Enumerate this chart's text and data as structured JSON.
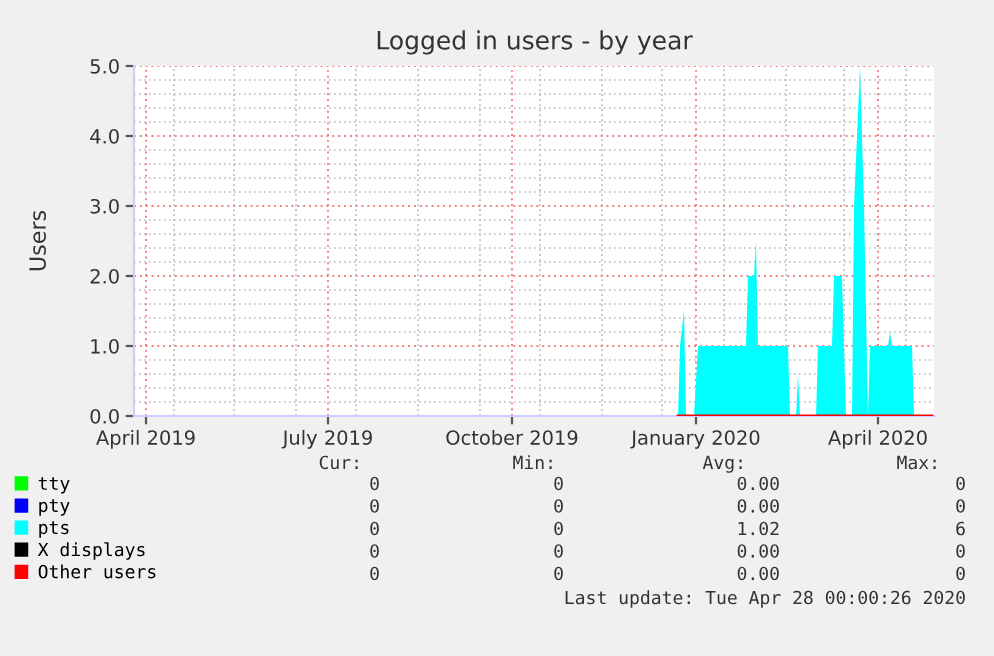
{
  "chart_data": {
    "type": "area",
    "title": "Logged in users - by year",
    "ylabel": "Users",
    "xlim": [
      "2019-03-26",
      "2020-04-29"
    ],
    "ylim": [
      0,
      5
    ],
    "xticks": [
      {
        "value": "2019-04-01",
        "label": "April 2019"
      },
      {
        "value": "2019-07-01",
        "label": "July 2019"
      },
      {
        "value": "2019-10-01",
        "label": "October 2019"
      },
      {
        "value": "2020-01-01",
        "label": "January 2020"
      },
      {
        "value": "2020-04-01",
        "label": "April 2020"
      }
    ],
    "yticks": [
      {
        "value": 0,
        "label": "0.0"
      },
      {
        "value": 1,
        "label": "1.0"
      },
      {
        "value": 2,
        "label": "2.0"
      },
      {
        "value": 3,
        "label": "3.0"
      },
      {
        "value": 4,
        "label": "4.0"
      },
      {
        "value": 5,
        "label": "5.0"
      }
    ],
    "grid": true,
    "legend": "bottom left",
    "series": [
      {
        "name": "tty",
        "color": "#00ff00",
        "type": "line"
      },
      {
        "name": "pty",
        "color": "#0000ff",
        "type": "line"
      },
      {
        "name": "pts",
        "color": "#00ffff",
        "x": [
          "2019-12-23",
          "2019-12-24",
          "2019-12-26",
          "2019-12-27",
          "2019-12-31",
          "2020-01-02",
          "2020-01-26",
          "2020-01-27",
          "2020-01-30",
          "2020-01-31",
          "2020-02-01",
          "2020-02-16",
          "2020-02-17",
          "2020-02-20",
          "2020-02-21",
          "2020-02-22",
          "2020-03-01",
          "2020-03-02",
          "2020-03-09",
          "2020-03-10",
          "2020-03-14",
          "2020-03-16",
          "2020-03-19",
          "2020-03-20",
          "2020-03-23",
          "2020-03-25",
          "2020-03-27",
          "2020-03-28",
          "2020-04-06",
          "2020-04-07",
          "2020-04-08",
          "2020-04-18",
          "2020-04-19",
          "2020-04-28"
        ],
        "values": [
          0,
          1,
          1.5,
          0,
          0,
          1,
          1,
          2,
          2,
          2.5,
          1,
          1,
          0,
          0,
          0.6,
          0,
          0,
          1,
          1,
          2,
          2,
          0,
          0,
          3,
          5,
          3,
          0,
          1,
          1,
          1.2,
          1,
          1,
          0,
          0
        ]
      },
      {
        "name": "X displays",
        "color": "#000000",
        "type": "line"
      },
      {
        "name": "Other users",
        "color": "#ff0000",
        "type": "line",
        "x": [
          "2019-12-23",
          "2020-04-28"
        ],
        "values": [
          0,
          0
        ]
      }
    ],
    "annotations": [
      "Cur:",
      "Min:",
      "Avg:",
      "Max:",
      "0",
      "0",
      "0.00",
      "0",
      "0",
      "0",
      "0.00",
      "0",
      "0",
      "0",
      "1.02",
      "6",
      "0",
      "0",
      "0.00",
      "0",
      "0",
      "0",
      "0.00",
      "0",
      "Last update: Tue Apr 28 00:00:26 2020"
    ]
  }
}
